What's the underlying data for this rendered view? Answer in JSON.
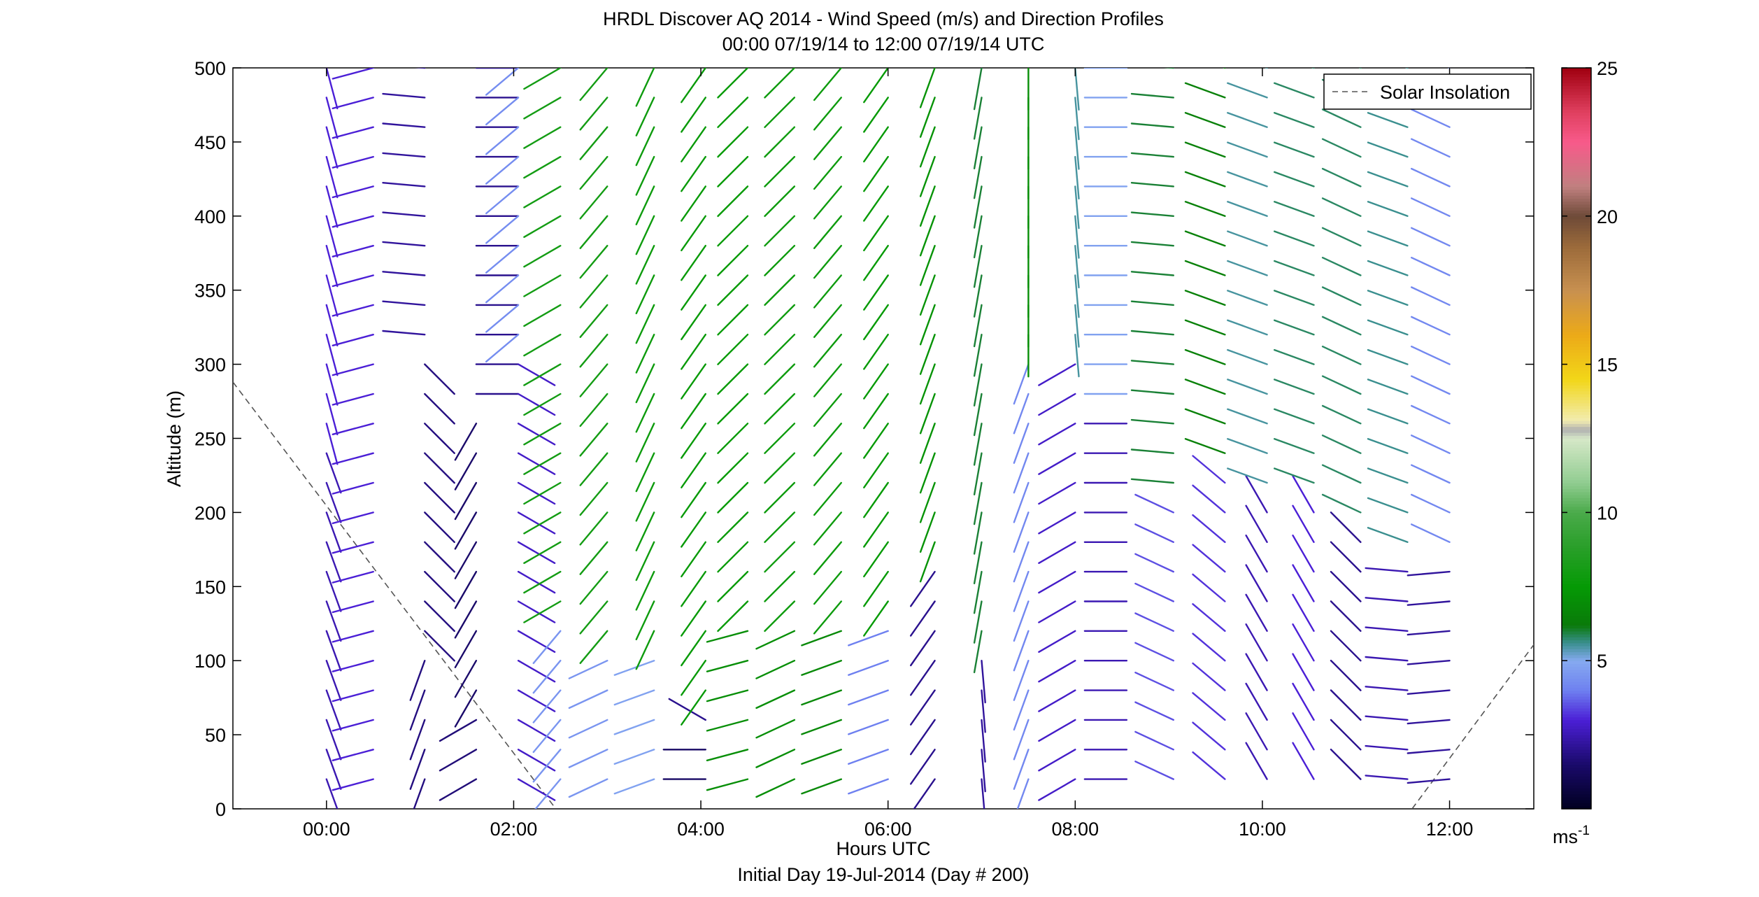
{
  "chart_data": {
    "type": "vector-field",
    "title": "HRDL Discover AQ 2014 - Wind Speed (m/s) and Direction Profiles",
    "subtitle": "00:00 07/19/14 to 12:00 07/19/14  UTC",
    "xlabel": "Hours UTC",
    "xlabel2": "Initial Day 19-Jul-2014 (Day # 200)",
    "ylabel": "Altitude (m)",
    "x_unit": "hours",
    "xlim": [
      -1,
      12.9
    ],
    "ylim": [
      0,
      500
    ],
    "x_ticks": [
      {
        "value": 0,
        "label": "00:00"
      },
      {
        "value": 2,
        "label": "02:00"
      },
      {
        "value": 4,
        "label": "04:00"
      },
      {
        "value": 6,
        "label": "06:00"
      },
      {
        "value": 8,
        "label": "08:00"
      },
      {
        "value": 10,
        "label": "10:00"
      },
      {
        "value": 12,
        "label": "12:00"
      }
    ],
    "y_ticks": [
      {
        "value": 0,
        "label": "0"
      },
      {
        "value": 50,
        "label": "50"
      },
      {
        "value": 100,
        "label": "100"
      },
      {
        "value": 150,
        "label": "150"
      },
      {
        "value": 200,
        "label": "200"
      },
      {
        "value": 250,
        "label": "250"
      },
      {
        "value": 300,
        "label": "300"
      },
      {
        "value": 350,
        "label": "350"
      },
      {
        "value": 400,
        "label": "400"
      },
      {
        "value": 450,
        "label": "450"
      },
      {
        "value": 500,
        "label": "500"
      }
    ],
    "grid": false,
    "legend": {
      "position": "top-right",
      "entries": [
        {
          "label": "Solar Insolation",
          "style": "dashed",
          "color": "#555555"
        }
      ]
    },
    "colorbar": {
      "range": [
        0,
        25
      ],
      "unit_label": "ms",
      "unit_superscript": "-1",
      "ticks": [
        {
          "value": 5,
          "label": "5"
        },
        {
          "value": 10,
          "label": "10"
        },
        {
          "value": 15,
          "label": "15"
        },
        {
          "value": 20,
          "label": "20"
        },
        {
          "value": 25,
          "label": "25"
        }
      ],
      "stops": [
        {
          "v": 0,
          "c": "#000020"
        },
        {
          "v": 1.5,
          "c": "#1a0a6a"
        },
        {
          "v": 3,
          "c": "#4b1fd6"
        },
        {
          "v": 4,
          "c": "#6e80f0"
        },
        {
          "v": 5,
          "c": "#86aaf0"
        },
        {
          "v": 5.6,
          "c": "#3a8f8f"
        },
        {
          "v": 6.2,
          "c": "#0a7a0a"
        },
        {
          "v": 7.5,
          "c": "#059a05"
        },
        {
          "v": 9,
          "c": "#2ea02e"
        },
        {
          "v": 10,
          "c": "#4aaa4a"
        },
        {
          "v": 11,
          "c": "#90cc90"
        },
        {
          "v": 12.5,
          "c": "#d6e8c8"
        },
        {
          "v": 12.8,
          "c": "#b0b0b0"
        },
        {
          "v": 13.1,
          "c": "#f2ecb0"
        },
        {
          "v": 14.5,
          "c": "#f2d618"
        },
        {
          "v": 16,
          "c": "#ecaa18"
        },
        {
          "v": 17.5,
          "c": "#c89050"
        },
        {
          "v": 19,
          "c": "#9a6a3a"
        },
        {
          "v": 20,
          "c": "#6e4a38"
        },
        {
          "v": 21,
          "c": "#c08080"
        },
        {
          "v": 22.5,
          "c": "#f85a8a"
        },
        {
          "v": 23.5,
          "c": "#e04060"
        },
        {
          "v": 25,
          "c": "#a00010"
        }
      ]
    },
    "insolation": [
      {
        "x": [
          -1,
          2.45
        ],
        "y": [
          288,
          0
        ]
      },
      {
        "x": [
          11.6,
          12.95
        ],
        "y": [
          0,
          115
        ]
      }
    ],
    "altitudes": [
      20,
      40,
      60,
      80,
      100,
      120,
      140,
      160,
      180,
      200,
      220,
      240,
      260,
      280,
      300,
      320,
      340,
      360,
      380,
      400,
      420,
      440,
      460,
      480,
      500
    ],
    "profiles": [
      {
        "t": 0.0,
        "tops": [
          240,
          500
        ],
        "speed": [
          2.5,
          3.0
        ],
        "dir": [
          160,
          165
        ]
      },
      {
        "t": 0.5,
        "tops": [
          500
        ],
        "speed": [
          3.0
        ],
        "dir": [
          255
        ]
      },
      {
        "t": 1.05,
        "tops": [
          100,
          300,
          500
        ],
        "speed": [
          1.8,
          1.8,
          2.2
        ],
        "dir": [
          200,
          135,
          275
        ]
      },
      {
        "t": 1.6,
        "tops": [
          60,
          260,
          500
        ],
        "speed": [
          1.7,
          1.5,
          2.0
        ],
        "dir": [
          240,
          210,
          90
        ]
      },
      {
        "t": 2.05,
        "tops": [
          300,
          500
        ],
        "speed": [
          2.8,
          4.3
        ],
        "dir": [
          120,
          230
        ]
      },
      {
        "t": 2.5,
        "tops": [
          120,
          500
        ],
        "speed": [
          4.5,
          8.0
        ],
        "dir": [
          220,
          240
        ]
      },
      {
        "t": 3.0,
        "tops": [
          100,
          500
        ],
        "speed": [
          4.5,
          8.0
        ],
        "dir": [
          245,
          220
        ]
      },
      {
        "t": 3.5,
        "tops": [
          100,
          500
        ],
        "speed": [
          4.8,
          7.8
        ],
        "dir": [
          250,
          205
        ]
      },
      {
        "t": 4.05,
        "tops": [
          40,
          60,
          500
        ],
        "speed": [
          1.4,
          2.0,
          7.6
        ],
        "dir": [
          270,
          300,
          215
        ]
      },
      {
        "t": 4.5,
        "tops": [
          120,
          500
        ],
        "speed": [
          7.0,
          7.5
        ],
        "dir": [
          255,
          225
        ]
      },
      {
        "t": 5.0,
        "tops": [
          120,
          500
        ],
        "speed": [
          7.0,
          7.8
        ],
        "dir": [
          245,
          225
        ]
      },
      {
        "t": 5.5,
        "tops": [
          120,
          500
        ],
        "speed": [
          6.8,
          7.8
        ],
        "dir": [
          250,
          220
        ]
      },
      {
        "t": 6.0,
        "tops": [
          120,
          500
        ],
        "speed": [
          4.0,
          7.5
        ],
        "dir": [
          250,
          215
        ]
      },
      {
        "t": 6.5,
        "tops": [
          160,
          500
        ],
        "speed": [
          2.0,
          7.2
        ],
        "dir": [
          215,
          200
        ]
      },
      {
        "t": 7.0,
        "tops": [
          100,
          500
        ],
        "speed": [
          2.2,
          6.0
        ],
        "dir": [
          175,
          190
        ]
      },
      {
        "t": 7.5,
        "tops": [
          300,
          500
        ],
        "speed": [
          4.2,
          7.0
        ],
        "dir": [
          200,
          180
        ]
      },
      {
        "t": 8.0,
        "tops": [
          300,
          500
        ],
        "speed": [
          2.8,
          5.5
        ],
        "dir": [
          240,
          175
        ]
      },
      {
        "t": 8.55,
        "tops": [
          260,
          500
        ],
        "speed": [
          2.5,
          4.8
        ],
        "dir": [
          270,
          270
        ]
      },
      {
        "t": 9.05,
        "tops": [
          200,
          500
        ],
        "speed": [
          3.5,
          6.0
        ],
        "dir": [
          295,
          275
        ]
      },
      {
        "t": 9.6,
        "tops": [
          220,
          500
        ],
        "speed": [
          3.2,
          6.5
        ],
        "dir": [
          310,
          290
        ]
      },
      {
        "t": 10.05,
        "tops": [
          200,
          500
        ],
        "speed": [
          2.5,
          5.5
        ],
        "dir": [
          330,
          290
        ]
      },
      {
        "t": 10.55,
        "tops": [
          200,
          500
        ],
        "speed": [
          3.0,
          5.8
        ],
        "dir": [
          330,
          290
        ]
      },
      {
        "t": 11.05,
        "tops": [
          180,
          500
        ],
        "speed": [
          2.0,
          5.8
        ],
        "dir": [
          315,
          295
        ]
      },
      {
        "t": 11.55,
        "tops": [
          160,
          500
        ],
        "speed": [
          2.5,
          5.6
        ],
        "dir": [
          275,
          290
        ]
      },
      {
        "t": 12.0,
        "tops": [
          160,
          500
        ],
        "speed": [
          2.2,
          4.2
        ],
        "dir": [
          265,
          295
        ]
      }
    ]
  }
}
